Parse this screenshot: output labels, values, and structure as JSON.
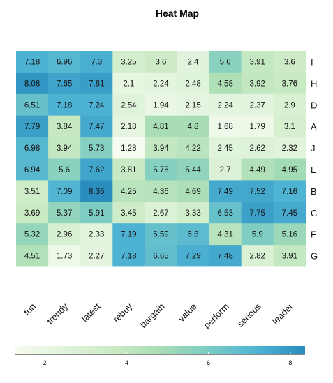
{
  "chart_data": {
    "type": "heatmap",
    "title": "Heat Map",
    "columns": [
      "fun",
      "trendy",
      "latest",
      "rebuy",
      "bargain",
      "value",
      "perform",
      "serious",
      "leader"
    ],
    "rows": [
      "I",
      "H",
      "D",
      "A",
      "J",
      "E",
      "B",
      "C",
      "F",
      "G"
    ],
    "values": [
      [
        7.18,
        6.96,
        7.3,
        3.25,
        3.6,
        2.4,
        5.6,
        3.91,
        3.6
      ],
      [
        8.08,
        7.65,
        7.81,
        2.1,
        2.24,
        2.48,
        4.58,
        3.92,
        3.76
      ],
      [
        6.51,
        7.18,
        7.24,
        2.54,
        1.94,
        2.15,
        2.24,
        2.37,
        2.9
      ],
      [
        7.79,
        3.84,
        7.47,
        2.18,
        4.81,
        4.8,
        1.68,
        1.79,
        3.1
      ],
      [
        6.98,
        3.94,
        5.73,
        1.28,
        3.94,
        4.22,
        2.45,
        2.62,
        2.32
      ],
      [
        6.94,
        5.6,
        7.62,
        3.81,
        5.75,
        5.44,
        2.7,
        4.49,
        4.95
      ],
      [
        3.51,
        7.09,
        8.36,
        4.25,
        4.36,
        4.69,
        7.49,
        7.52,
        7.16
      ],
      [
        3.69,
        5.37,
        5.91,
        3.45,
        2.67,
        3.33,
        6.53,
        7.75,
        7.45
      ],
      [
        5.32,
        2.96,
        2.33,
        7.19,
        6.59,
        6.8,
        4.31,
        5.9,
        5.16
      ],
      [
        4.51,
        1.73,
        2.27,
        7.18,
        6.65,
        7.29,
        7.48,
        2.82,
        3.91
      ]
    ],
    "value_range": [
      1.28,
      8.36
    ],
    "colorbar_ticks": [
      2,
      4,
      6,
      8
    ],
    "colorscale": [
      "#f7fcf0",
      "#e0f3db",
      "#ccebc5",
      "#a8ddb5",
      "#7bccc4",
      "#4eb3d3",
      "#2b8cbe"
    ],
    "legend_position": "bottom"
  }
}
